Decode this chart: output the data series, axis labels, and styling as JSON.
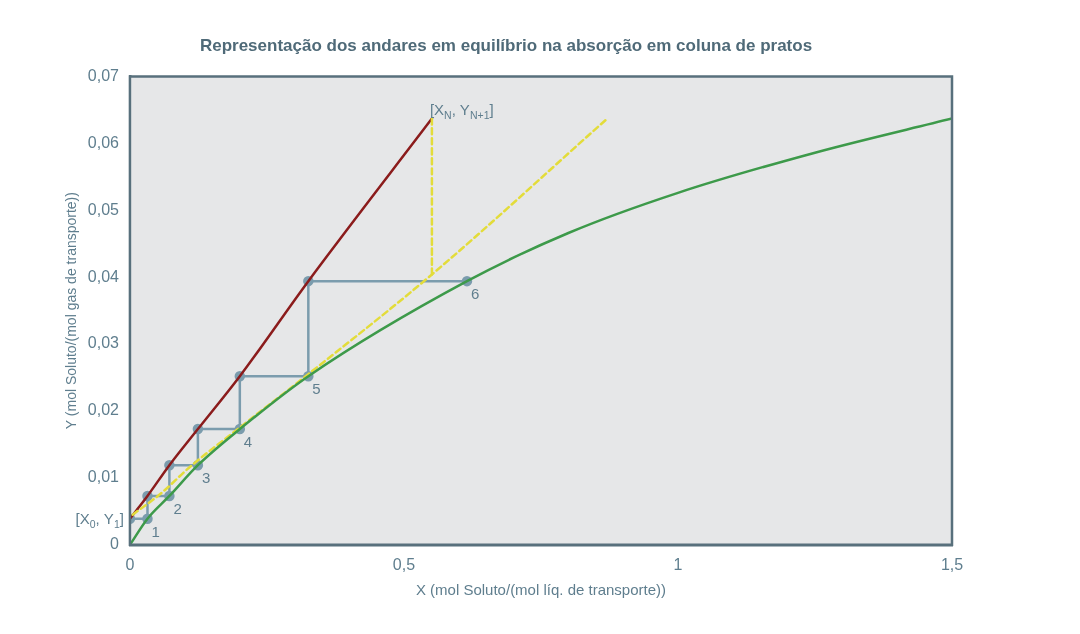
{
  "chart_data": {
    "type": "line",
    "title": "Representação dos andares em equilíbrio na absorção em coluna de pratos",
    "xlabel": "X (mol Soluto/(mol líq. de transporte))",
    "ylabel": "Y (mol Soluto/(mol gas de transporte))",
    "xlim": [
      0,
      1.5
    ],
    "xticks": [
      0,
      {
        "value": 0.5,
        "label": "0,5"
      },
      1,
      {
        "value": 1.5,
        "label": "1,5"
      }
    ],
    "ylim": [
      0,
      0.07
    ],
    "yticks": [
      0,
      {
        "value": 0.01,
        "label": "0,01"
      },
      {
        "value": 0.02,
        "label": "0,02"
      },
      {
        "value": 0.03,
        "label": "0,03"
      },
      {
        "value": 0.04,
        "label": "0,04"
      },
      {
        "value": 0.05,
        "label": "0,05"
      },
      {
        "value": 0.06,
        "label": "0,06"
      },
      {
        "value": 0.07,
        "label": "0,07"
      }
    ],
    "grid": false,
    "legend": false,
    "marker": "none",
    "line_style": "solid",
    "series": [
      {
        "color": "#3d9a4a",
        "x": [
          0,
          0.032,
          0.072,
          0.124,
          0.2005,
          0.3255,
          0.615,
          0.8,
          1,
          1.25,
          1.5
        ],
        "values": [
          0,
          0.0039,
          0.0073,
          0.0119,
          0.0173,
          0.0252,
          0.0394,
          0.0466,
          0.0526,
          0.0586,
          0.0637
        ]
      },
      {
        "color": "#e3dc3a",
        "line_style": "dashed",
        "x": [
          0.005,
          0.057,
          0.109,
          0.2,
          0.3255,
          0.551,
          0.871
        ],
        "values": [
          0.0045,
          0.0077,
          0.0116,
          0.0175,
          0.0255,
          0.0404,
          0.0637
        ]
      },
      {
        "color": "#e3dc3a",
        "line_style": "dashed",
        "x": [
          0.551,
          0.551
        ],
        "values": [
          0.0404,
          0.0637
        ]
      },
      {
        "color": "#8b1c1c",
        "x": [
          0,
          0.032,
          0.072,
          0.124,
          0.2005,
          0.3255,
          0.551
        ],
        "values": [
          0.0039,
          0.0073,
          0.0119,
          0.0173,
          0.0252,
          0.0394,
          0.0637
        ]
      },
      {
        "color": "#7b9cad",
        "marker": "circle",
        "x": [
          0,
          0.032,
          0.032,
          0.072,
          0.072,
          0.124,
          0.124,
          0.2005,
          0.2005,
          0.3255,
          0.3255,
          0.615
        ],
        "values": [
          0.0039,
          0.0039,
          0.0073,
          0.0073,
          0.0119,
          0.0119,
          0.0173,
          0.0173,
          0.0252,
          0.0252,
          0.0394,
          0.0394
        ]
      }
    ],
    "annotations": [
      {
        "text": "[X$_{0}$, Y$_{1}$]",
        "x": 0,
        "y": 0.0039
      },
      {
        "text": "1",
        "x": 0.032,
        "y": 0.0039
      },
      {
        "text": "2",
        "x": 0.072,
        "y": 0.0073
      },
      {
        "text": "3",
        "x": 0.124,
        "y": 0.0119
      },
      {
        "text": "4",
        "x": 0.2005,
        "y": 0.0173
      },
      {
        "text": "5",
        "x": 0.3255,
        "y": 0.0252
      },
      {
        "text": "6",
        "x": 0.615,
        "y": 0.0394
      },
      {
        "text": "[X$_{N}$, Y$_{N+1}$]",
        "x": 0.551,
        "y": 0.0637
      }
    ]
  }
}
